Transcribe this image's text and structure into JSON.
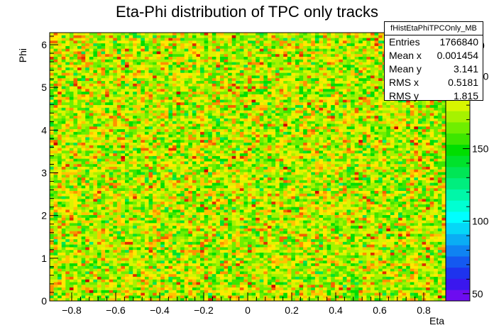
{
  "chart_data": {
    "type": "heatmap",
    "title": "Eta-Phi distribution of TPC only tracks",
    "xlabel": "Eta",
    "ylabel": "Phi",
    "xlim": [
      -0.9,
      0.9
    ],
    "ylim": [
      0,
      6.2832
    ],
    "x_ticks": [
      "−0.8",
      "−0.6",
      "−0.4",
      "−0.2",
      "0",
      "0.2",
      "0.4",
      "0.6",
      "0.8"
    ],
    "x_tick_values": [
      -0.8,
      -0.6,
      -0.4,
      -0.2,
      0,
      0.2,
      0.4,
      0.6,
      0.8
    ],
    "y_ticks": [
      "0",
      "1",
      "2",
      "3",
      "4",
      "5",
      "6"
    ],
    "y_tick_values": [
      0,
      1,
      2,
      3,
      4,
      5,
      6
    ],
    "bins_x": 100,
    "bins_y": 100,
    "z_mean": 176.7,
    "z_range": [
      45,
      230
    ],
    "colorbar_ticks": [
      "50",
      "100",
      "150",
      "200"
    ],
    "colorbar_tick_values": [
      50,
      100,
      150,
      200
    ],
    "colorbar_hidden_tick": "0",
    "palette": [
      "#6d0cf0",
      "#3a17ee",
      "#1e33ee",
      "#1459f0",
      "#0f83f2",
      "#0aadf4",
      "#05d7f7",
      "#00ffff",
      "#00ffd2",
      "#00f7a8",
      "#00ee7e",
      "#00e655",
      "#00e22b",
      "#00de00",
      "#3de600",
      "#6fee00",
      "#a6f200",
      "#d8f500",
      "#ffea00",
      "#ffc400",
      "#ff9200",
      "#f46000",
      "#e02d00",
      "#cc0000"
    ],
    "stats": {
      "name": "fHistEtaPhiTPCOnly_MB",
      "rows": [
        {
          "label": "Entries",
          "value": "1766840"
        },
        {
          "label": "Mean x",
          "value": "0.001454"
        },
        {
          "label": "Mean y",
          "value": "3.141"
        },
        {
          "label": "RMS x",
          "value": "0.5181"
        },
        {
          "label": "RMS y",
          "value": "1.815"
        }
      ]
    }
  }
}
